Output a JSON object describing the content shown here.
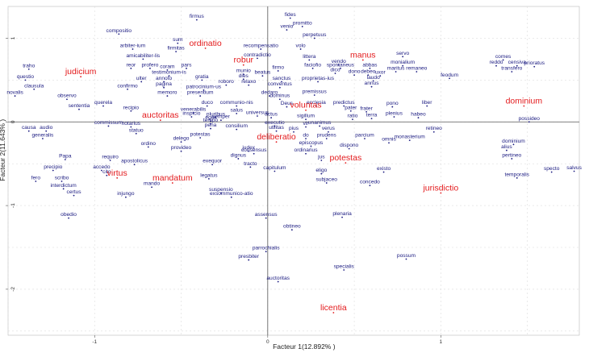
{
  "chart_data": {
    "type": "scatter",
    "title": "",
    "xlabel": "Facteur 1(12.892% )",
    "ylabel": "Facteur 2(11.643% )",
    "xlim": [
      -1.5,
      1.8
    ],
    "ylim": [
      -2.55,
      1.38
    ],
    "xticks": [
      {
        "v": -1,
        "label": "-1"
      },
      {
        "v": 0,
        "label": "0"
      },
      {
        "v": 1,
        "label": "1"
      }
    ],
    "yticks": [
      {
        "v": -2,
        "label": "-2"
      },
      {
        "v": -1,
        "label": "-1"
      },
      {
        "v": 0,
        "label": "0"
      },
      {
        "v": 1,
        "label": "1"
      }
    ],
    "grid": true,
    "colors": {
      "words": "#1a1a80",
      "highlight": "#e31a1c",
      "axis": "#555555",
      "grid": "#dddddd"
    },
    "points": [
      {
        "label": "fides",
        "x": 0.13,
        "y": 1.24,
        "hl": false
      },
      {
        "label": "promitto",
        "x": 0.2,
        "y": 1.14,
        "hl": false
      },
      {
        "label": "venio",
        "x": 0.11,
        "y": 1.1,
        "hl": false
      },
      {
        "label": "firmus",
        "x": -0.41,
        "y": 1.22,
        "hl": false
      },
      {
        "label": "perpetuus",
        "x": 0.27,
        "y": 1.0,
        "hl": false
      },
      {
        "label": "compositio",
        "x": -0.86,
        "y": 1.05,
        "hl": false
      },
      {
        "label": "sum",
        "x": -0.52,
        "y": 0.94,
        "hl": false
      },
      {
        "label": "arbiter-ium",
        "x": -0.78,
        "y": 0.87,
        "hl": false
      },
      {
        "label": "firmitas",
        "x": -0.53,
        "y": 0.84,
        "hl": false
      },
      {
        "label": "ordinatio",
        "x": -0.36,
        "y": 0.88,
        "hl": true
      },
      {
        "label": "recompensatio",
        "x": -0.04,
        "y": 0.87,
        "hl": false
      },
      {
        "label": "volo",
        "x": 0.19,
        "y": 0.87,
        "hl": false
      },
      {
        "label": "amicabiliter-lis",
        "x": -0.72,
        "y": 0.75,
        "hl": false
      },
      {
        "label": "contradictio",
        "x": -0.06,
        "y": 0.76,
        "hl": false
      },
      {
        "label": "littera",
        "x": 0.24,
        "y": 0.74,
        "hl": false
      },
      {
        "label": "servo",
        "x": 0.78,
        "y": 0.78,
        "hl": false
      },
      {
        "label": "comes",
        "x": 1.36,
        "y": 0.74,
        "hl": false
      },
      {
        "label": "manus",
        "x": 0.55,
        "y": 0.74,
        "hl": true
      },
      {
        "label": "censiva",
        "x": 1.44,
        "y": 0.67,
        "hl": false
      },
      {
        "label": "reddo",
        "x": 1.32,
        "y": 0.67,
        "hl": false
      },
      {
        "label": "prioratus",
        "x": 1.54,
        "y": 0.66,
        "hl": false
      },
      {
        "label": "vendo",
        "x": 0.41,
        "y": 0.68,
        "hl": false
      },
      {
        "label": "monialium",
        "x": 0.78,
        "y": 0.67,
        "hl": false
      },
      {
        "label": "transfero",
        "x": 1.41,
        "y": 0.6,
        "hl": false
      },
      {
        "label": "reor",
        "x": -0.79,
        "y": 0.64,
        "hl": false
      },
      {
        "label": "profero",
        "x": -0.68,
        "y": 0.64,
        "hl": false
      },
      {
        "label": "coram",
        "x": -0.58,
        "y": 0.62,
        "hl": false
      },
      {
        "label": "pars",
        "x": -0.47,
        "y": 0.64,
        "hl": false
      },
      {
        "label": "robur",
        "x": -0.14,
        "y": 0.68,
        "hl": true
      },
      {
        "label": "faciofio",
        "x": 0.26,
        "y": 0.64,
        "hl": false
      },
      {
        "label": "spontaneus",
        "x": 0.42,
        "y": 0.64,
        "hl": false
      },
      {
        "label": "abbas",
        "x": 0.59,
        "y": 0.64,
        "hl": false
      },
      {
        "label": "maritus",
        "x": 0.74,
        "y": 0.6,
        "hl": false
      },
      {
        "label": "remaneo",
        "x": 0.86,
        "y": 0.6,
        "hl": false
      },
      {
        "label": "traho",
        "x": -1.38,
        "y": 0.63,
        "hl": false
      },
      {
        "label": "testimonium-is",
        "x": -0.57,
        "y": 0.55,
        "hl": false
      },
      {
        "label": "munio",
        "x": -0.14,
        "y": 0.57,
        "hl": false
      },
      {
        "label": "firmo",
        "x": 0.06,
        "y": 0.61,
        "hl": false
      },
      {
        "label": "dico",
        "x": 0.39,
        "y": 0.58,
        "hl": false
      },
      {
        "label": "dono",
        "x": 0.5,
        "y": 0.56,
        "hl": false
      },
      {
        "label": "debeo",
        "x": 0.58,
        "y": 0.56,
        "hl": false
      },
      {
        "label": "uxor",
        "x": 0.65,
        "y": 0.55,
        "hl": false
      },
      {
        "label": "feodum",
        "x": 1.05,
        "y": 0.52,
        "hl": false
      },
      {
        "label": "questio",
        "x": -1.4,
        "y": 0.5,
        "hl": false
      },
      {
        "label": "judicium",
        "x": -1.08,
        "y": 0.54,
        "hl": true
      },
      {
        "label": "ulter",
        "x": -0.73,
        "y": 0.48,
        "hl": false
      },
      {
        "label": "annoto",
        "x": -0.6,
        "y": 0.48,
        "hl": false
      },
      {
        "label": "gratia",
        "x": -0.38,
        "y": 0.5,
        "hl": false
      },
      {
        "label": "dies",
        "x": -0.14,
        "y": 0.51,
        "hl": false
      },
      {
        "label": "beatus",
        "x": -0.03,
        "y": 0.55,
        "hl": false
      },
      {
        "label": "sanctus",
        "x": 0.08,
        "y": 0.48,
        "hl": false
      },
      {
        "label": "proprietas-ius",
        "x": 0.29,
        "y": 0.48,
        "hl": false
      },
      {
        "label": "laudo",
        "x": 0.61,
        "y": 0.49,
        "hl": false
      },
      {
        "label": "pagina",
        "x": -0.6,
        "y": 0.41,
        "hl": false
      },
      {
        "label": "roboro",
        "x": -0.24,
        "y": 0.44,
        "hl": false
      },
      {
        "label": "relaxo",
        "x": -0.11,
        "y": 0.44,
        "hl": false
      },
      {
        "label": "conventus",
        "x": 0.07,
        "y": 0.41,
        "hl": false
      },
      {
        "label": "annus",
        "x": 0.6,
        "y": 0.42,
        "hl": false
      },
      {
        "label": "clausula",
        "x": -1.35,
        "y": 0.39,
        "hl": false
      },
      {
        "label": "confirmo",
        "x": -0.81,
        "y": 0.39,
        "hl": false
      },
      {
        "label": "patrocinium-us",
        "x": -0.37,
        "y": 0.38,
        "hl": false
      },
      {
        "label": "novalis",
        "x": -1.46,
        "y": 0.31,
        "hl": false
      },
      {
        "label": "memoro",
        "x": -0.58,
        "y": 0.31,
        "hl": false
      },
      {
        "label": "presentium",
        "x": -0.39,
        "y": 0.31,
        "hl": false
      },
      {
        "label": "dedaro",
        "x": 0.01,
        "y": 0.31,
        "hl": false
      },
      {
        "label": "premissus",
        "x": 0.27,
        "y": 0.32,
        "hl": false
      },
      {
        "label": "observo",
        "x": -1.16,
        "y": 0.27,
        "hl": false
      },
      {
        "label": "dominus",
        "x": 0.07,
        "y": 0.27,
        "hl": false
      },
      {
        "label": "querela",
        "x": -0.95,
        "y": 0.19,
        "hl": false
      },
      {
        "label": "duco",
        "x": -0.35,
        "y": 0.19,
        "hl": false
      },
      {
        "label": "communio-nis",
        "x": -0.18,
        "y": 0.19,
        "hl": false
      },
      {
        "label": "Deus",
        "x": 0.11,
        "y": 0.18,
        "hl": false
      },
      {
        "label": "ecclesia",
        "x": 0.28,
        "y": 0.19,
        "hl": false
      },
      {
        "label": "predictus",
        "x": 0.44,
        "y": 0.19,
        "hl": false
      },
      {
        "label": "pono",
        "x": 0.72,
        "y": 0.18,
        "hl": false
      },
      {
        "label": "liber",
        "x": 0.92,
        "y": 0.19,
        "hl": false
      },
      {
        "label": "dominium",
        "x": 1.48,
        "y": 0.19,
        "hl": true
      },
      {
        "label": "sententia",
        "x": -1.09,
        "y": 0.15,
        "hl": false
      },
      {
        "label": "recipio",
        "x": -0.79,
        "y": 0.13,
        "hl": false
      },
      {
        "label": "venerabilis",
        "x": -0.43,
        "y": 0.11,
        "hl": false
      },
      {
        "label": "salus",
        "x": -0.18,
        "y": 0.1,
        "hl": false
      },
      {
        "label": "universus",
        "x": -0.06,
        "y": 0.07,
        "hl": false
      },
      {
        "label": "voluntas",
        "x": 0.22,
        "y": 0.14,
        "hl": true
      },
      {
        "label": "pater",
        "x": 0.48,
        "y": 0.13,
        "hl": false
      },
      {
        "label": "frater",
        "x": 0.57,
        "y": 0.12,
        "hl": false
      },
      {
        "label": "plenius",
        "x": 0.73,
        "y": 0.06,
        "hl": false
      },
      {
        "label": "habeo",
        "x": 0.87,
        "y": 0.05,
        "hl": false
      },
      {
        "label": "inspicio",
        "x": -0.44,
        "y": 0.06,
        "hl": false
      },
      {
        "label": "pluribus",
        "x": -0.3,
        "y": 0.05,
        "hl": false
      },
      {
        "label": "actus",
        "x": 0.02,
        "y": 0.05,
        "hl": false
      },
      {
        "label": "sigillum",
        "x": 0.22,
        "y": 0.03,
        "hl": false
      },
      {
        "label": "ratio",
        "x": 0.49,
        "y": 0.03,
        "hl": false
      },
      {
        "label": "terra",
        "x": 0.6,
        "y": 0.04,
        "hl": false
      },
      {
        "label": "auctoritas",
        "x": -0.62,
        "y": 0.02,
        "hl": true
      },
      {
        "label": "eger",
        "x": -0.33,
        "y": 0.01,
        "hl": false
      },
      {
        "label": "semper",
        "x": -0.27,
        "y": 0.02,
        "hl": false
      },
      {
        "label": "tempo",
        "x": -0.33,
        "y": -0.02,
        "hl": false
      },
      {
        "label": "possideo",
        "x": 1.51,
        "y": 0.0,
        "hl": false
      },
      {
        "label": "commissum",
        "x": -0.92,
        "y": -0.05,
        "hl": false
      },
      {
        "label": "pena",
        "x": -0.33,
        "y": -0.08,
        "hl": false
      },
      {
        "label": "consilium",
        "x": -0.18,
        "y": -0.09,
        "hl": false
      },
      {
        "label": "executio",
        "x": 0.04,
        "y": -0.05,
        "hl": false
      },
      {
        "label": "vir",
        "x": 0.22,
        "y": -0.06,
        "hl": false
      },
      {
        "label": "unanimus",
        "x": 0.3,
        "y": -0.05,
        "hl": false
      },
      {
        "label": "causa",
        "x": -1.38,
        "y": -0.11,
        "hl": false
      },
      {
        "label": "audio",
        "x": -1.28,
        "y": -0.11,
        "hl": false
      },
      {
        "label": "notarius",
        "x": -0.79,
        "y": -0.06,
        "hl": false
      },
      {
        "label": "utilitas",
        "x": 0.05,
        "y": -0.11,
        "hl": false
      },
      {
        "label": "pius",
        "x": 0.15,
        "y": -0.12,
        "hl": false
      },
      {
        "label": "verus",
        "x": 0.35,
        "y": -0.12,
        "hl": false
      },
      {
        "label": "retineo",
        "x": 0.96,
        "y": -0.12,
        "hl": false
      },
      {
        "label": "statuo",
        "x": -0.76,
        "y": -0.14,
        "hl": false
      },
      {
        "label": "potestas",
        "x": -0.39,
        "y": -0.19,
        "hl": false
      },
      {
        "label": "do",
        "x": 0.22,
        "y": -0.2,
        "hl": false
      },
      {
        "label": "prudens",
        "x": 0.34,
        "y": -0.2,
        "hl": false
      },
      {
        "label": "parcium",
        "x": 0.56,
        "y": -0.2,
        "hl": false
      },
      {
        "label": "monasterium",
        "x": 0.82,
        "y": -0.22,
        "hl": false
      },
      {
        "label": "generalis",
        "x": -1.3,
        "y": -0.2,
        "hl": false
      },
      {
        "label": "delego",
        "x": -0.5,
        "y": -0.24,
        "hl": false
      },
      {
        "label": "deliberatio",
        "x": 0.05,
        "y": -0.24,
        "hl": true
      },
      {
        "label": "omnis",
        "x": 0.7,
        "y": -0.25,
        "hl": false
      },
      {
        "label": "dominium",
        "x": 1.42,
        "y": -0.27,
        "hl": false
      },
      {
        "label": "ordino",
        "x": -0.69,
        "y": -0.3,
        "hl": false
      },
      {
        "label": "episcopus",
        "x": 0.25,
        "y": -0.29,
        "hl": false
      },
      {
        "label": "dispono",
        "x": 0.47,
        "y": -0.32,
        "hl": false
      },
      {
        "label": "alius",
        "x": 1.38,
        "y": -0.34,
        "hl": false
      },
      {
        "label": "provideo",
        "x": -0.5,
        "y": -0.35,
        "hl": false
      },
      {
        "label": "judex",
        "x": -0.11,
        "y": -0.35,
        "hl": false
      },
      {
        "label": "ordinarius",
        "x": 0.22,
        "y": -0.38,
        "hl": false
      },
      {
        "label": "consensus",
        "x": -0.08,
        "y": -0.38,
        "hl": false
      },
      {
        "label": "Papa",
        "x": -1.17,
        "y": -0.45,
        "hl": false
      },
      {
        "label": "requiro",
        "x": -0.91,
        "y": -0.46,
        "hl": false
      },
      {
        "label": "dignus",
        "x": -0.17,
        "y": -0.44,
        "hl": false
      },
      {
        "label": "jus",
        "x": 0.31,
        "y": -0.46,
        "hl": false
      },
      {
        "label": "pertineo",
        "x": 1.41,
        "y": -0.44,
        "hl": false
      },
      {
        "label": "apostolicus",
        "x": -0.77,
        "y": -0.51,
        "hl": false
      },
      {
        "label": "exequor",
        "x": -0.32,
        "y": -0.51,
        "hl": false
      },
      {
        "label": "tracto",
        "x": -0.1,
        "y": -0.54,
        "hl": false
      },
      {
        "label": "capitulum",
        "x": 0.04,
        "y": -0.59,
        "hl": false
      },
      {
        "label": "potestas",
        "x": 0.45,
        "y": -0.49,
        "hl": true
      },
      {
        "label": "accedo",
        "x": -0.96,
        "y": -0.58,
        "hl": false
      },
      {
        "label": "precipio",
        "x": -1.24,
        "y": -0.58,
        "hl": false
      },
      {
        "label": "cito",
        "x": -0.93,
        "y": -0.64,
        "hl": false
      },
      {
        "label": "eligo",
        "x": 0.31,
        "y": -0.62,
        "hl": false
      },
      {
        "label": "existo",
        "x": 0.67,
        "y": -0.6,
        "hl": false
      },
      {
        "label": "specto",
        "x": 1.64,
        "y": -0.6,
        "hl": false
      },
      {
        "label": "salvus",
        "x": 1.77,
        "y": -0.59,
        "hl": false
      },
      {
        "label": "fero",
        "x": -1.34,
        "y": -0.71,
        "hl": false
      },
      {
        "label": "scribo",
        "x": -1.19,
        "y": -0.71,
        "hl": false
      },
      {
        "label": "virtus",
        "x": -0.87,
        "y": -0.67,
        "hl": true
      },
      {
        "label": "legatus",
        "x": -0.34,
        "y": -0.68,
        "hl": false
      },
      {
        "label": "temporalis",
        "x": 1.44,
        "y": -0.67,
        "hl": false
      },
      {
        "label": "mandatum",
        "x": -0.55,
        "y": -0.73,
        "hl": true
      },
      {
        "label": "subjaceo",
        "x": 0.34,
        "y": -0.73,
        "hl": false
      },
      {
        "label": "concedo",
        "x": 0.59,
        "y": -0.76,
        "hl": false
      },
      {
        "label": "interdictum",
        "x": -1.18,
        "y": -0.8,
        "hl": false
      },
      {
        "label": "mando",
        "x": -0.67,
        "y": -0.78,
        "hl": false
      },
      {
        "label": "suspensio",
        "x": -0.27,
        "y": -0.85,
        "hl": false
      },
      {
        "label": "jurisdictio",
        "x": 1.0,
        "y": -0.85,
        "hl": true
      },
      {
        "label": "certus",
        "x": -1.12,
        "y": -0.88,
        "hl": false
      },
      {
        "label": "injungo",
        "x": -0.82,
        "y": -0.9,
        "hl": false
      },
      {
        "label": "exsommunico-atio",
        "x": -0.21,
        "y": -0.9,
        "hl": false
      },
      {
        "label": "obedio",
        "x": -1.15,
        "y": -1.15,
        "hl": false
      },
      {
        "label": "plenaria",
        "x": 0.43,
        "y": -1.14,
        "hl": false
      },
      {
        "label": "assensus",
        "x": -0.01,
        "y": -1.15,
        "hl": false
      },
      {
        "label": "obtineo",
        "x": 0.14,
        "y": -1.29,
        "hl": false
      },
      {
        "label": "parrochialis",
        "x": -0.01,
        "y": -1.55,
        "hl": false
      },
      {
        "label": "possum",
        "x": 0.8,
        "y": -1.64,
        "hl": false
      },
      {
        "label": "presbiter",
        "x": -0.11,
        "y": -1.65,
        "hl": false
      },
      {
        "label": "specialis",
        "x": 0.44,
        "y": -1.77,
        "hl": false
      },
      {
        "label": "auctoritas",
        "x": 0.06,
        "y": -1.91,
        "hl": false
      },
      {
        "label": "licentia",
        "x": 0.38,
        "y": -2.28,
        "hl": true
      }
    ]
  }
}
